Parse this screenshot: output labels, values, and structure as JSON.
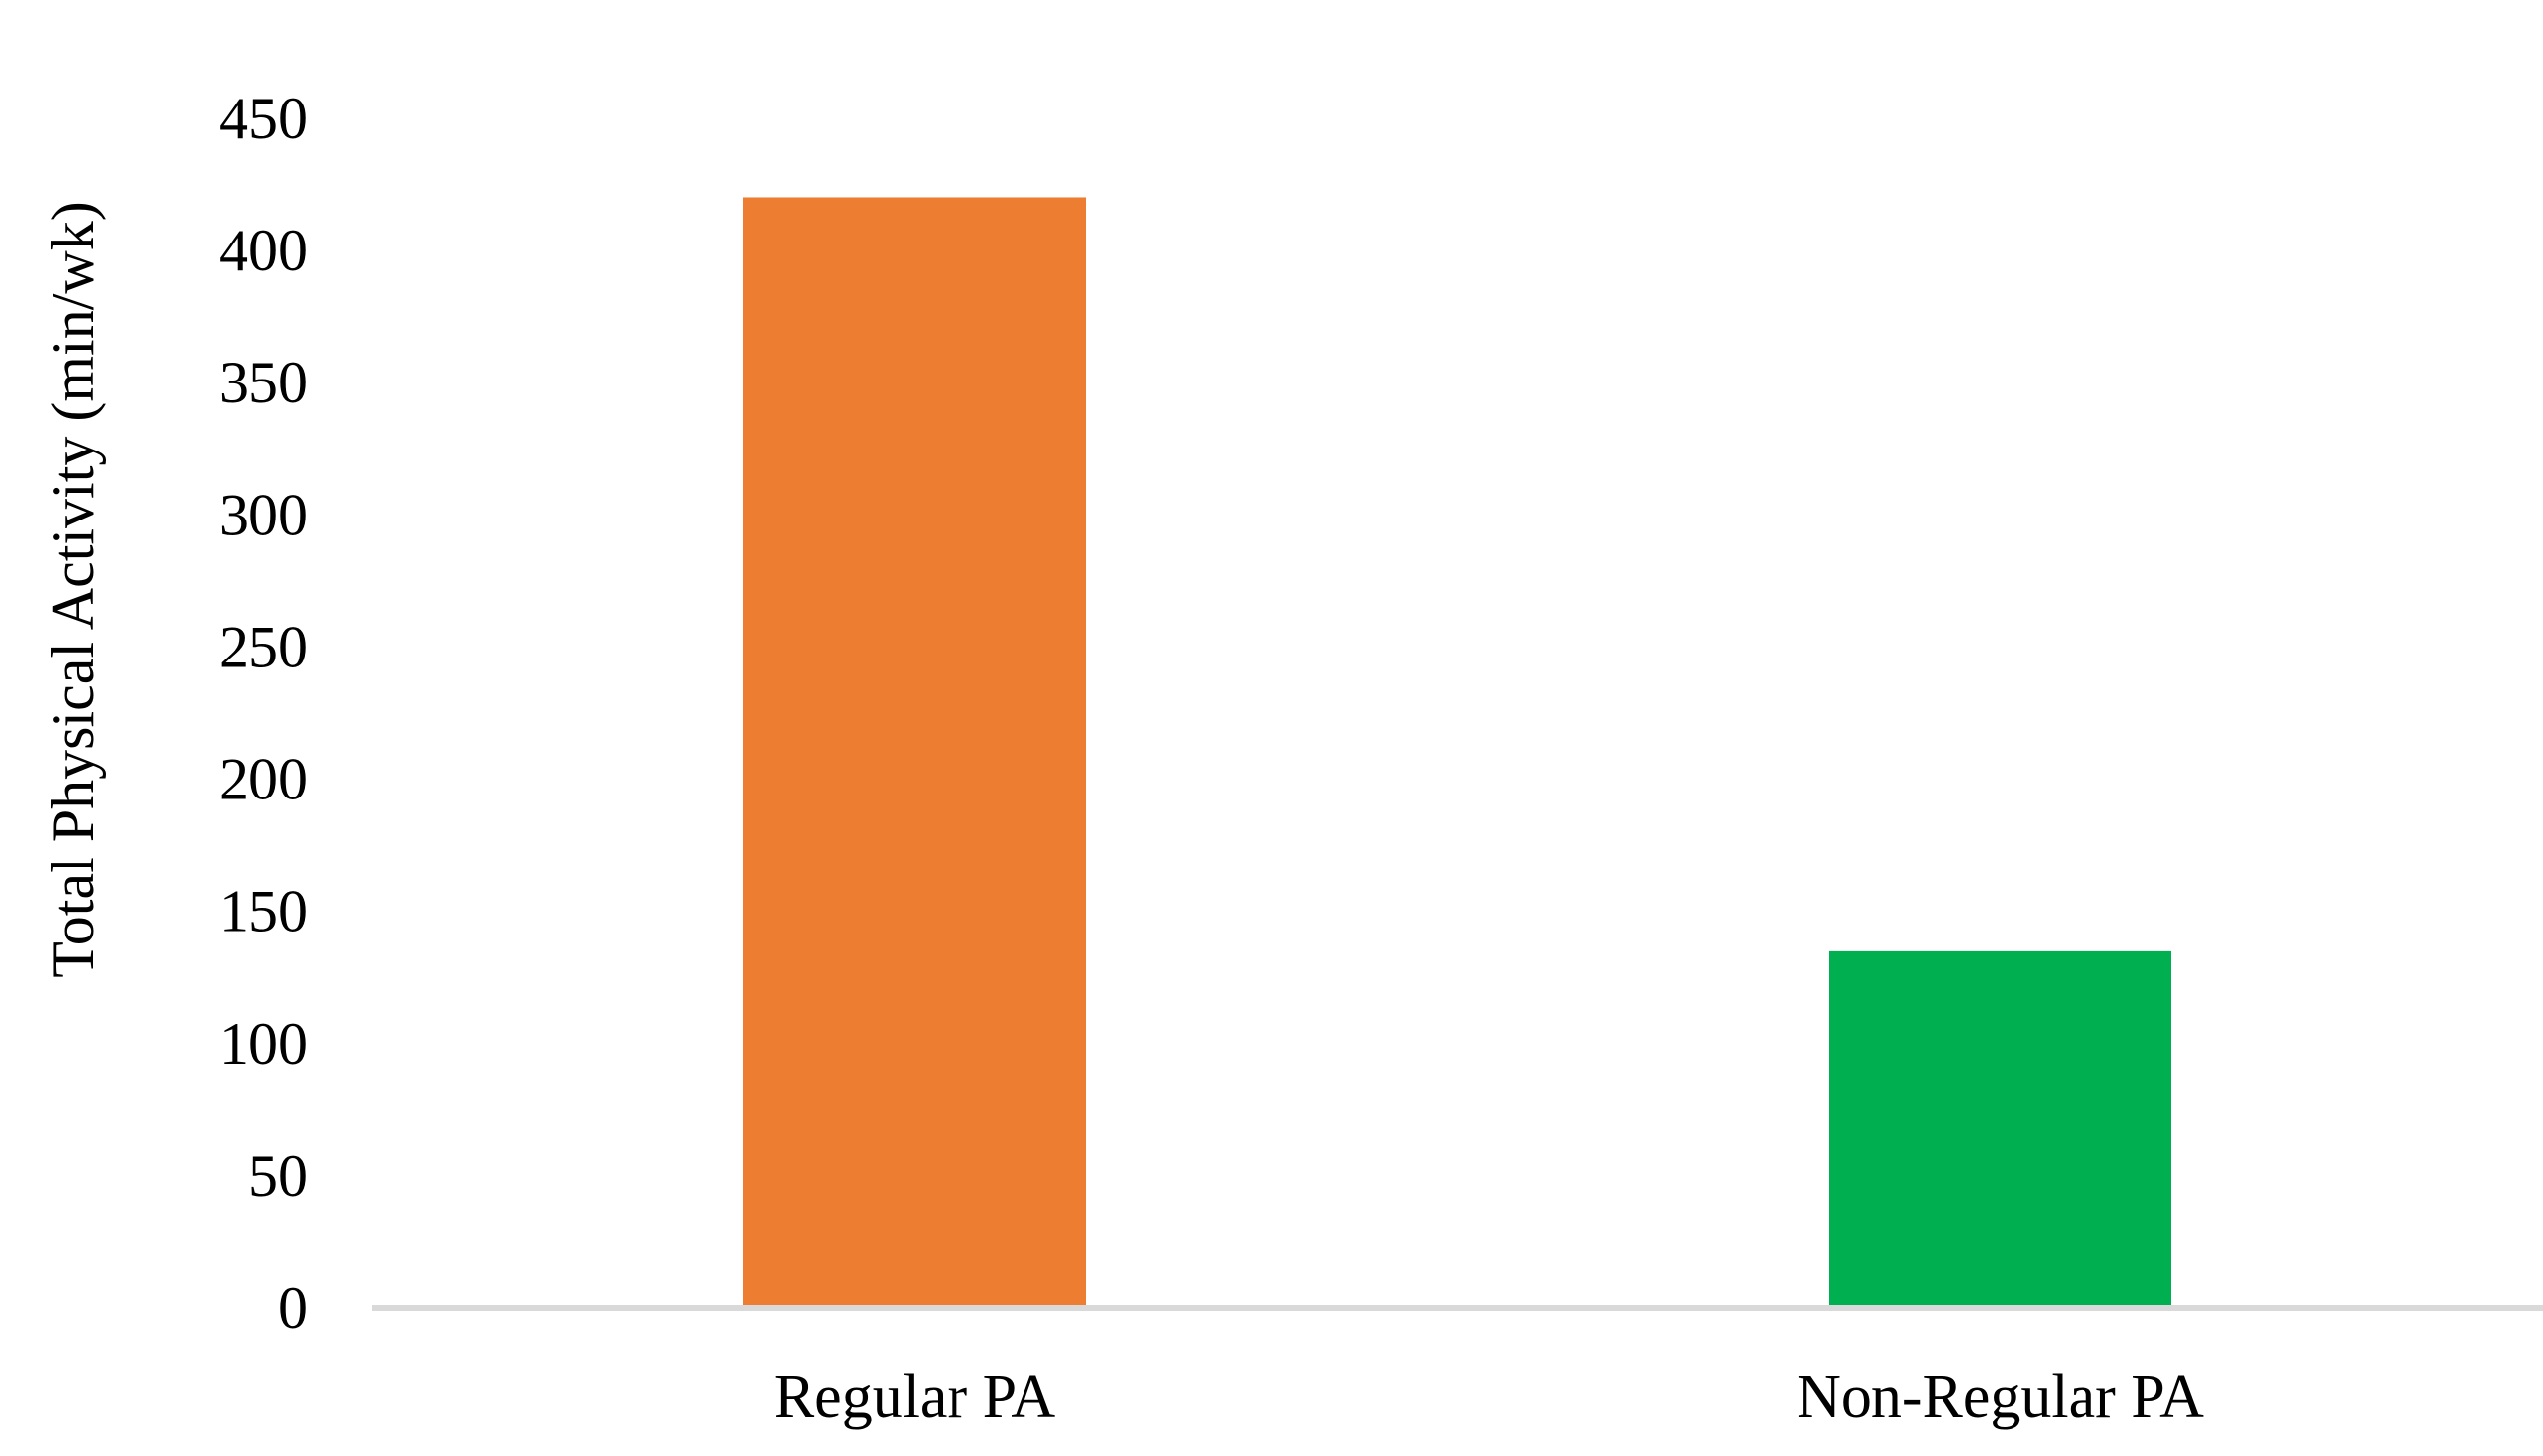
{
  "chart_data": {
    "type": "bar",
    "title": "",
    "xlabel": "",
    "ylabel": "Total Physical Activity (min/wk)",
    "categories": [
      "Regular PA",
      "Non-Regular PA"
    ],
    "values": [
      420,
      135
    ],
    "colors": [
      "#ED7D31",
      "#00B050"
    ],
    "ylim": [
      0,
      450
    ],
    "yticks": [
      "0",
      "50",
      "100",
      "150",
      "200",
      "250",
      "300",
      "350",
      "400",
      "450"
    ],
    "grid": false,
    "legend": "none",
    "axis_color": "#D9D9D9"
  }
}
